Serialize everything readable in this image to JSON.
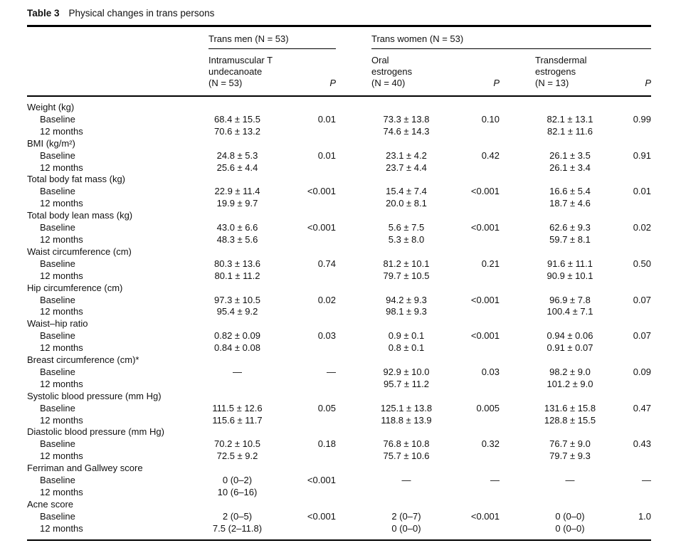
{
  "title": {
    "label": "Table 3",
    "caption": "Physical changes in trans persons"
  },
  "header": {
    "groups": [
      {
        "label": "Trans men (N = 53)"
      },
      {
        "label": "Trans women (N = 53)"
      }
    ],
    "columns": [
      "Intramuscular T\nundecanoate\n(N = 53)",
      "P",
      "Oral\nestrogens\n(N = 40)",
      "P",
      "Transdermal\nestrogens\n(N = 13)",
      "P"
    ]
  },
  "rows": [
    {
      "label": "Weight (kg)"
    },
    {
      "label": "Baseline",
      "cells": [
        "68.4 ± 15.5",
        "0.01",
        "73.3 ± 13.8",
        "0.10",
        "82.1 ± 13.1",
        "0.99"
      ]
    },
    {
      "label": "12 months",
      "cells": [
        "70.6 ± 13.2",
        "",
        "74.6 ± 14.3",
        "",
        "82.1 ± 11.6",
        ""
      ]
    },
    {
      "label": "BMI (kg/m²)"
    },
    {
      "label": "Baseline",
      "cells": [
        "24.8 ± 5.3",
        "0.01",
        "23.1 ± 4.2",
        "0.42",
        "26.1 ± 3.5",
        "0.91"
      ]
    },
    {
      "label": "12 months",
      "cells": [
        "25.6 ± 4.4",
        "",
        "23.7 ± 4.4",
        "",
        "26.1 ± 3.4",
        ""
      ]
    },
    {
      "label": "Total body fat mass (kg)"
    },
    {
      "label": "Baseline",
      "cells": [
        "22.9 ± 11.4",
        "<0.001",
        "15.4 ± 7.4",
        "<0.001",
        "16.6 ± 5.4",
        "0.01"
      ]
    },
    {
      "label": "12 months",
      "cells": [
        "19.9 ± 9.7",
        "",
        "20.0 ± 8.1",
        "",
        "18.7 ± 4.6",
        ""
      ]
    },
    {
      "label": "Total body lean mass (kg)"
    },
    {
      "label": "Baseline",
      "cells": [
        "43.0 ± 6.6",
        "<0.001",
        "5.6 ± 7.5",
        "<0.001",
        "62.6 ± 9.3",
        "0.02"
      ]
    },
    {
      "label": "12 months",
      "cells": [
        "48.3 ± 5.6",
        "",
        "5.3 ± 8.0",
        "",
        "59.7 ± 8.1",
        ""
      ]
    },
    {
      "label": "Waist circumference (cm)"
    },
    {
      "label": "Baseline",
      "cells": [
        "80.3 ± 13.6",
        "0.74",
        "81.2 ± 10.1",
        "0.21",
        "91.6 ± 11.1",
        "0.50"
      ]
    },
    {
      "label": "12 months",
      "cells": [
        "80.1 ± 11.2",
        "",
        "79.7 ± 10.5",
        "",
        "90.9 ± 10.1",
        ""
      ]
    },
    {
      "label": "Hip circumference (cm)"
    },
    {
      "label": "Baseline",
      "cells": [
        "97.3 ± 10.5",
        "0.02",
        "94.2 ± 9.3",
        "<0.001",
        "96.9 ± 7.8",
        "0.07"
      ]
    },
    {
      "label": "12 months",
      "cells": [
        "95.4 ± 9.2",
        "",
        "98.1 ± 9.3",
        "",
        "100.4 ± 7.1",
        ""
      ]
    },
    {
      "label": "Waist–hip ratio"
    },
    {
      "label": "Baseline",
      "cells": [
        "0.82 ± 0.09",
        "0.03",
        "0.9 ± 0.1",
        "<0.001",
        "0.94 ± 0.06",
        "0.07"
      ]
    },
    {
      "label": "12 months",
      "cells": [
        "0.84 ± 0.08",
        "",
        "0.8 ± 0.1",
        "",
        "0.91 ± 0.07",
        ""
      ]
    },
    {
      "label": "Breast circumference (cm)*"
    },
    {
      "label": "Baseline",
      "cells": [
        "—",
        "—",
        "92.9 ± 10.0",
        "0.03",
        "98.2 ± 9.0",
        "0.09"
      ]
    },
    {
      "label": "12 months",
      "cells": [
        "",
        "",
        "95.7 ± 11.2",
        "",
        "101.2 ± 9.0",
        ""
      ]
    },
    {
      "label": "Systolic blood pressure (mm Hg)"
    },
    {
      "label": "Baseline",
      "cells": [
        "111.5 ± 12.6",
        "0.05",
        "125.1 ± 13.8",
        "0.005",
        "131.6 ± 15.8",
        "0.47"
      ]
    },
    {
      "label": "12 months",
      "cells": [
        "115.6 ± 11.7",
        "",
        "118.8 ± 13.9",
        "",
        "128.8 ± 15.5",
        ""
      ]
    },
    {
      "label": "Diastolic blood pressure (mm Hg)"
    },
    {
      "label": "Baseline",
      "cells": [
        "70.2 ± 10.5",
        "0.18",
        "76.8 ± 10.8",
        "0.32",
        "76.7 ± 9.0",
        "0.43"
      ]
    },
    {
      "label": "12 months",
      "cells": [
        "72.5 ± 9.2",
        "",
        "75.7 ± 10.6",
        "",
        "79.7 ± 9.3",
        ""
      ]
    },
    {
      "label": "Ferriman and Gallwey score"
    },
    {
      "label": "Baseline",
      "cells": [
        "0 (0–2)",
        "<0.001",
        "—",
        "—",
        "—",
        "—"
      ]
    },
    {
      "label": "12 months",
      "cells": [
        "10 (6–16)",
        "",
        "",
        "",
        "",
        ""
      ]
    },
    {
      "label": "Acne score"
    },
    {
      "label": "Baseline",
      "cells": [
        "2 (0–5)",
        "<0.001",
        "2 (0–7)",
        "<0.001",
        "0 (0–0)",
        "1.0"
      ]
    },
    {
      "label": "12 months",
      "cells": [
        "7.5 (2–11.8)",
        "",
        "0 (0–0)",
        "",
        "0 (0–0)",
        ""
      ]
    }
  ]
}
